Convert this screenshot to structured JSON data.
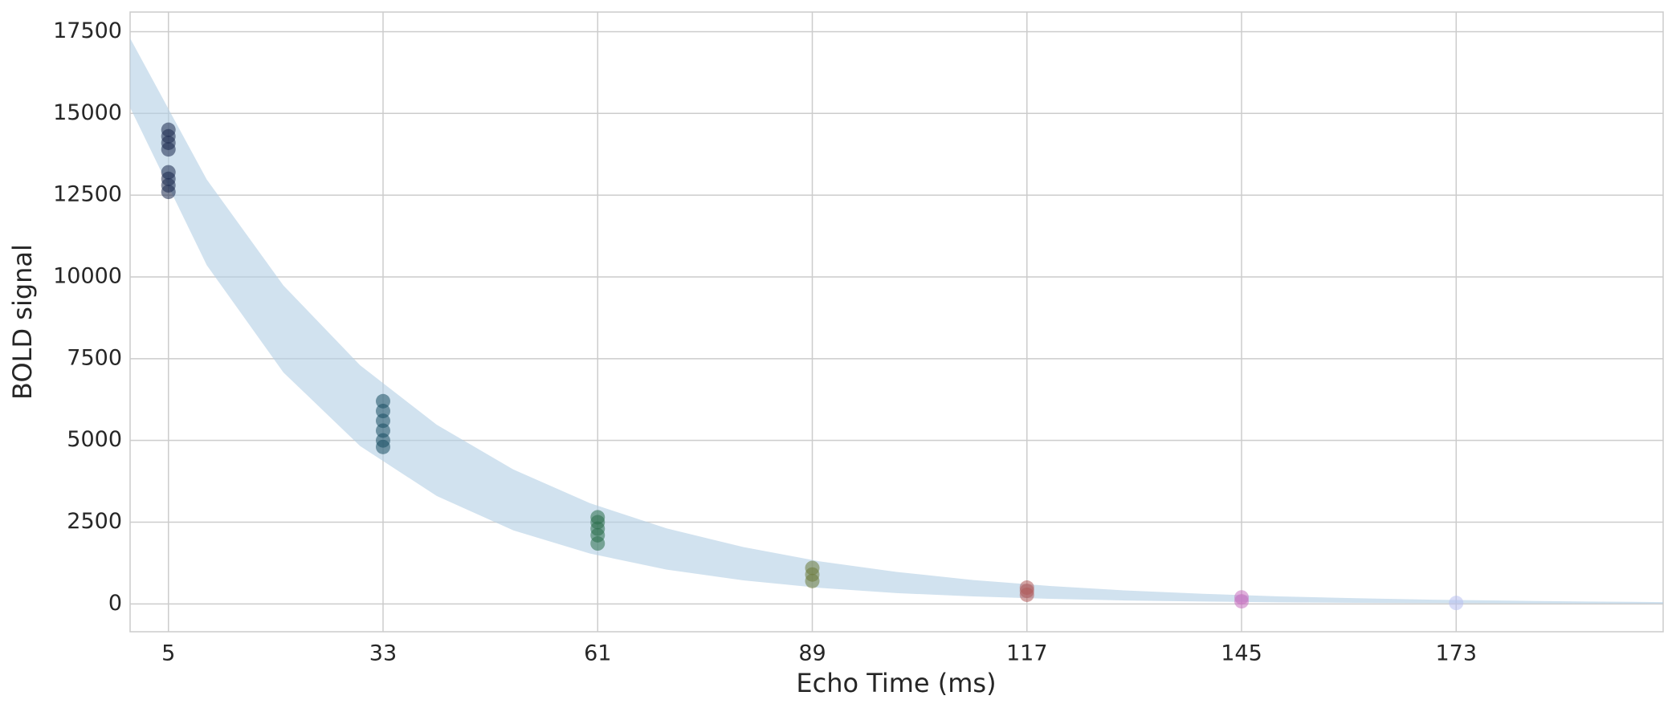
{
  "chart_data": {
    "type": "scatter",
    "x_label": "Echo Time (ms)",
    "y_label": "BOLD signal",
    "xlim": [
      0,
      200
    ],
    "xticks": [
      5,
      33,
      61,
      89,
      117,
      145,
      173
    ],
    "ylim": [
      -850,
      18100
    ],
    "yticks": [
      0,
      2500,
      5000,
      7500,
      10000,
      12500,
      15000,
      17500
    ],
    "grid": true,
    "band": {
      "color": "#b3cfe5",
      "x": [
        0,
        10,
        20,
        30,
        40,
        50,
        60,
        70,
        80,
        90,
        100,
        110,
        120,
        130,
        140,
        150,
        160,
        170,
        180,
        190,
        200
      ],
      "upper": [
        17300,
        12980,
        9740,
        7300,
        5480,
        4110,
        3080,
        2310,
        1740,
        1300,
        980,
        730,
        550,
        410,
        310,
        230,
        175,
        130,
        100,
        75,
        55
      ],
      "lower": [
        15180,
        10360,
        7080,
        4830,
        3300,
        2250,
        1540,
        1050,
        720,
        490,
        330,
        230,
        155,
        105,
        73,
        50,
        34,
        23,
        16,
        11,
        7
      ]
    },
    "series": [
      {
        "color": "#1b2a4e",
        "x": [
          5,
          5,
          5,
          5,
          5,
          5,
          5,
          5
        ],
        "values": [
          12600,
          12800,
          13000,
          13200,
          13900,
          14100,
          14300,
          14500
        ]
      },
      {
        "color": "#1a4f63",
        "x": [
          33,
          33,
          33,
          33,
          33,
          33
        ],
        "values": [
          4800,
          5000,
          5300,
          5600,
          5900,
          6200
        ]
      },
      {
        "color": "#2a6e4a",
        "x": [
          61,
          61,
          61,
          61,
          61
        ],
        "values": [
          1850,
          2100,
          2300,
          2500,
          2650
        ]
      },
      {
        "color": "#6b7a3a",
        "x": [
          89,
          89,
          89
        ],
        "values": [
          700,
          900,
          1100
        ]
      },
      {
        "color": "#b05a5a",
        "x": [
          117,
          117,
          117
        ],
        "values": [
          280,
          400,
          500
        ]
      },
      {
        "color": "#c66fc0",
        "x": [
          145,
          145
        ],
        "values": [
          80,
          200
        ]
      },
      {
        "color": "#b8c0f0",
        "x": [
          173
        ],
        "values": [
          30
        ]
      }
    ]
  }
}
